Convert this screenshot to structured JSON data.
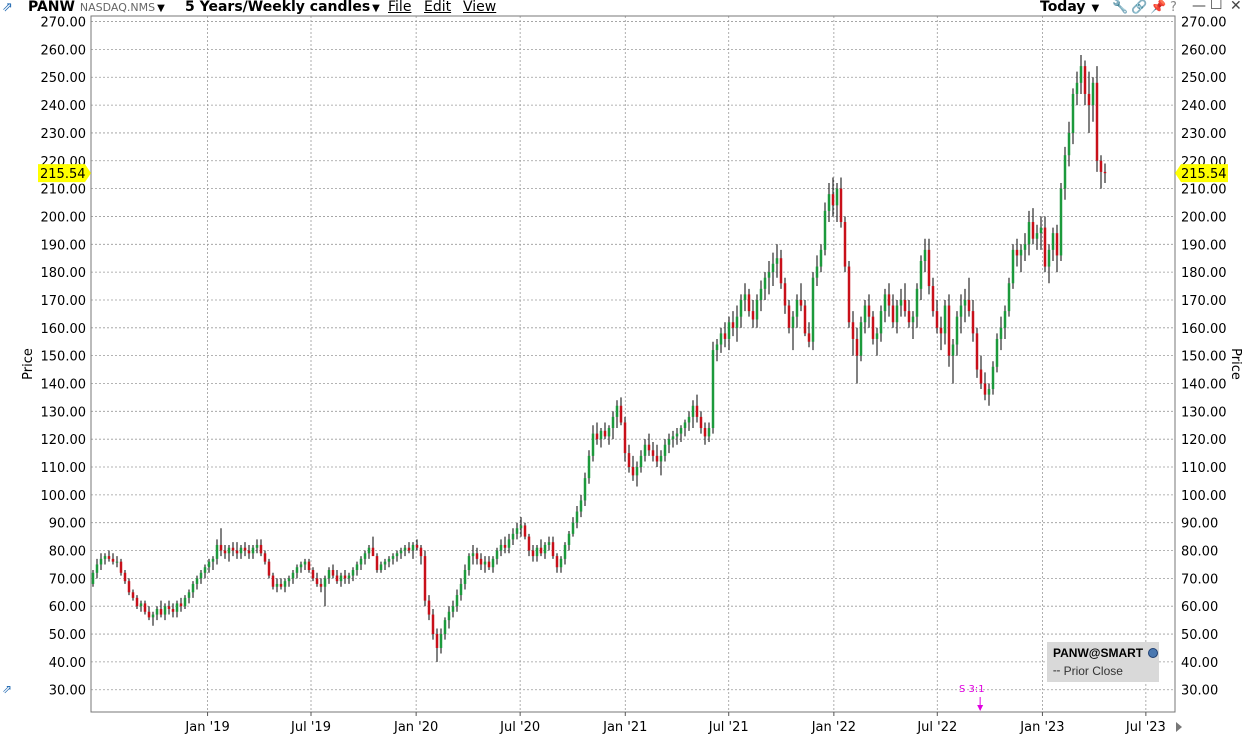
{
  "toolbar": {
    "symbol": "PANW",
    "exchange": "NASDAQ.NMS",
    "period": "5 Years/Weekly candles",
    "menu_file": "File",
    "menu_edit": "Edit",
    "menu_view": "View",
    "range_selector": "Today"
  },
  "icons": {
    "app": "chart-app-icon",
    "wrench": "wrench-icon",
    "link": "link-icon",
    "pin": "pin-icon",
    "help": "help-icon",
    "minimize": "minimize-icon",
    "maximize": "maximize-icon",
    "close": "close-icon"
  },
  "legend": {
    "title": "PANW@SMART",
    "prior_close": "Prior Close"
  },
  "event": {
    "label": "S 3:1",
    "date": "2022-09-14",
    "color": "#e000e0"
  },
  "colors": {
    "up": "#1c9a3c",
    "down": "#c8101a",
    "wick": "#000000",
    "price_tag": "#ffff00",
    "grid": "#9a9a9a"
  },
  "chart_data": {
    "type": "candlestick",
    "title": "",
    "ylabel": "Price",
    "ylim": [
      22,
      272
    ],
    "yticks": [
      30,
      40,
      50,
      60,
      70,
      80,
      90,
      100,
      110,
      120,
      130,
      140,
      150,
      160,
      170,
      180,
      190,
      200,
      210,
      220,
      230,
      240,
      250,
      260,
      270
    ],
    "ytick_labels": [
      "30.00",
      "40.00",
      "50.00",
      "60.00",
      "70.00",
      "80.00",
      "90.00",
      "100.00",
      "110.00",
      "120.00",
      "130.00",
      "140.00",
      "150.00",
      "160.00",
      "170.00",
      "180.00",
      "190.00",
      "200.00",
      "210.00",
      "220.00",
      "230.00",
      "240.00",
      "250.00",
      "260.00",
      "270.00"
    ],
    "xlim": [
      "2018-06-11",
      "2023-08-21"
    ],
    "xticks": [
      "2019-01-01",
      "2019-07-01",
      "2020-01-01",
      "2020-07-01",
      "2021-01-01",
      "2021-07-01",
      "2022-01-01",
      "2022-07-01",
      "2023-01-01",
      "2023-07-01"
    ],
    "xtick_labels": [
      "Jan '19",
      "Jul '19",
      "Jan '20",
      "Jul '20",
      "Jan '21",
      "Jul '21",
      "Jan '22",
      "Jul '22",
      "Jan '23",
      "Jul '23"
    ],
    "last_price": 215.54,
    "last_price_label": "215.54",
    "grid": true,
    "start_date": "2018-06-11",
    "interval_days": 7,
    "ohlc": [
      [
        68,
        73,
        67,
        72
      ],
      [
        72,
        77,
        70,
        75
      ],
      [
        75,
        79,
        73,
        77
      ],
      [
        77,
        79,
        75,
        78
      ],
      [
        78,
        80,
        76,
        77
      ],
      [
        77,
        79,
        75,
        76
      ],
      [
        76,
        78,
        74,
        76
      ],
      [
        76,
        77,
        71,
        72
      ],
      [
        72,
        73,
        68,
        69
      ],
      [
        69,
        70,
        64,
        65
      ],
      [
        65,
        66,
        62,
        63
      ],
      [
        63,
        64,
        59,
        60
      ],
      [
        60,
        62,
        58,
        61
      ],
      [
        61,
        62,
        57,
        58
      ],
      [
        58,
        60,
        55,
        56
      ],
      [
        56,
        58,
        53,
        57
      ],
      [
        57,
        60,
        55,
        59
      ],
      [
        59,
        62,
        56,
        57
      ],
      [
        57,
        61,
        55,
        60
      ],
      [
        60,
        62,
        57,
        59
      ],
      [
        59,
        61,
        56,
        58
      ],
      [
        58,
        62,
        56,
        61
      ],
      [
        61,
        63,
        58,
        60
      ],
      [
        60,
        64,
        59,
        63
      ],
      [
        63,
        66,
        61,
        65
      ],
      [
        65,
        69,
        63,
        68
      ],
      [
        68,
        71,
        66,
        70
      ],
      [
        70,
        73,
        68,
        72
      ],
      [
        72,
        75,
        70,
        74
      ],
      [
        74,
        77,
        72,
        76
      ],
      [
        76,
        78,
        73,
        77
      ],
      [
        77,
        84,
        75,
        82
      ],
      [
        82,
        88,
        78,
        80
      ],
      [
        80,
        82,
        77,
        79
      ],
      [
        79,
        82,
        76,
        81
      ],
      [
        81,
        83,
        78,
        80
      ],
      [
        80,
        83,
        77,
        79
      ],
      [
        79,
        82,
        77,
        81
      ],
      [
        81,
        83,
        78,
        80
      ],
      [
        80,
        82,
        77,
        79
      ],
      [
        79,
        82,
        77,
        81
      ],
      [
        81,
        84,
        79,
        82
      ],
      [
        82,
        84,
        78,
        79
      ],
      [
        79,
        80,
        75,
        76
      ],
      [
        76,
        77,
        70,
        71
      ],
      [
        71,
        72,
        66,
        67
      ],
      [
        67,
        70,
        65,
        68
      ],
      [
        68,
        70,
        66,
        67
      ],
      [
        67,
        70,
        65,
        69
      ],
      [
        69,
        71,
        67,
        70
      ],
      [
        70,
        73,
        68,
        72
      ],
      [
        72,
        75,
        70,
        74
      ],
      [
        74,
        76,
        72,
        75
      ],
      [
        75,
        77,
        73,
        76
      ],
      [
        76,
        77,
        72,
        73
      ],
      [
        73,
        74,
        69,
        70
      ],
      [
        70,
        72,
        67,
        68
      ],
      [
        68,
        70,
        65,
        67
      ],
      [
        67,
        71,
        60,
        70
      ],
      [
        70,
        74,
        68,
        73
      ],
      [
        73,
        75,
        70,
        71
      ],
      [
        71,
        73,
        68,
        69
      ],
      [
        69,
        72,
        67,
        71
      ],
      [
        71,
        73,
        68,
        70
      ],
      [
        70,
        72,
        68,
        71
      ],
      [
        71,
        74,
        69,
        73
      ],
      [
        73,
        76,
        71,
        75
      ],
      [
        75,
        78,
        73,
        77
      ],
      [
        77,
        80,
        75,
        79
      ],
      [
        79,
        82,
        77,
        81
      ],
      [
        81,
        85,
        79,
        78
      ],
      [
        78,
        79,
        72,
        73
      ],
      [
        73,
        76,
        72,
        75
      ],
      [
        75,
        77,
        73,
        76
      ],
      [
        76,
        78,
        74,
        77
      ],
      [
        77,
        79,
        75,
        78
      ],
      [
        78,
        80,
        76,
        79
      ],
      [
        79,
        81,
        77,
        80
      ],
      [
        80,
        82,
        78,
        81
      ],
      [
        81,
        83,
        79,
        80
      ],
      [
        80,
        83,
        77,
        82
      ],
      [
        82,
        84,
        80,
        81
      ],
      [
        81,
        82,
        75,
        78
      ],
      [
        78,
        80,
        60,
        62
      ],
      [
        62,
        64,
        55,
        57
      ],
      [
        57,
        59,
        48,
        50
      ],
      [
        50,
        52,
        40,
        45
      ],
      [
        45,
        52,
        43,
        50
      ],
      [
        50,
        56,
        48,
        55
      ],
      [
        55,
        60,
        52,
        58
      ],
      [
        58,
        62,
        56,
        60
      ],
      [
        60,
        66,
        58,
        64
      ],
      [
        64,
        70,
        62,
        68
      ],
      [
        68,
        75,
        66,
        73
      ],
      [
        73,
        79,
        71,
        78
      ],
      [
        78,
        82,
        75,
        79
      ],
      [
        79,
        81,
        75,
        77
      ],
      [
        77,
        79,
        73,
        75
      ],
      [
        75,
        78,
        72,
        76
      ],
      [
        76,
        78,
        73,
        74
      ],
      [
        74,
        78,
        72,
        77
      ],
      [
        77,
        81,
        75,
        80
      ],
      [
        80,
        84,
        78,
        82
      ],
      [
        82,
        85,
        79,
        81
      ],
      [
        81,
        86,
        79,
        84
      ],
      [
        84,
        88,
        82,
        86
      ],
      [
        86,
        90,
        84,
        88
      ],
      [
        88,
        92,
        85,
        89
      ],
      [
        89,
        90,
        84,
        85
      ],
      [
        85,
        86,
        78,
        80
      ],
      [
        80,
        82,
        76,
        78
      ],
      [
        78,
        82,
        76,
        81
      ],
      [
        81,
        84,
        78,
        79
      ],
      [
        79,
        83,
        77,
        82
      ],
      [
        82,
        85,
        80,
        83
      ],
      [
        83,
        85,
        77,
        78
      ],
      [
        78,
        79,
        72,
        74
      ],
      [
        74,
        78,
        72,
        77
      ],
      [
        77,
        83,
        75,
        82
      ],
      [
        82,
        87,
        80,
        86
      ],
      [
        86,
        92,
        85,
        90
      ],
      [
        90,
        96,
        88,
        94
      ],
      [
        94,
        100,
        92,
        98
      ],
      [
        98,
        108,
        96,
        106
      ],
      [
        106,
        116,
        104,
        114
      ],
      [
        114,
        125,
        112,
        122
      ],
      [
        122,
        126,
        118,
        120
      ],
      [
        120,
        124,
        117,
        123
      ],
      [
        123,
        126,
        120,
        121
      ],
      [
        121,
        125,
        118,
        124
      ],
      [
        124,
        130,
        120,
        128
      ],
      [
        128,
        134,
        124,
        132
      ],
      [
        132,
        135,
        125,
        126
      ],
      [
        126,
        128,
        112,
        115
      ],
      [
        115,
        118,
        108,
        110
      ],
      [
        110,
        114,
        105,
        107
      ],
      [
        107,
        112,
        103,
        110
      ],
      [
        110,
        116,
        108,
        114
      ],
      [
        114,
        120,
        112,
        118
      ],
      [
        118,
        122,
        114,
        116
      ],
      [
        116,
        119,
        112,
        114
      ],
      [
        114,
        118,
        110,
        112
      ],
      [
        112,
        116,
        107,
        114
      ],
      [
        114,
        120,
        112,
        118
      ],
      [
        118,
        122,
        115,
        120
      ],
      [
        120,
        123,
        117,
        121
      ],
      [
        121,
        124,
        118,
        122
      ],
      [
        122,
        125,
        119,
        124
      ],
      [
        124,
        127,
        121,
        126
      ],
      [
        126,
        130,
        123,
        128
      ],
      [
        128,
        134,
        124,
        132
      ],
      [
        132,
        136,
        126,
        128
      ],
      [
        128,
        130,
        122,
        124
      ],
      [
        124,
        126,
        118,
        121
      ],
      [
        121,
        126,
        119,
        124
      ],
      [
        124,
        155,
        122,
        152
      ],
      [
        152,
        156,
        148,
        154
      ],
      [
        154,
        160,
        151,
        158
      ],
      [
        158,
        162,
        153,
        156
      ],
      [
        156,
        164,
        152,
        162
      ],
      [
        162,
        166,
        157,
        160
      ],
      [
        160,
        168,
        155,
        164
      ],
      [
        164,
        172,
        160,
        170
      ],
      [
        170,
        176,
        166,
        172
      ],
      [
        172,
        174,
        164,
        166
      ],
      [
        166,
        170,
        160,
        163
      ],
      [
        163,
        172,
        160,
        170
      ],
      [
        170,
        177,
        166,
        174
      ],
      [
        174,
        180,
        170,
        178
      ],
      [
        178,
        184,
        172,
        180
      ],
      [
        180,
        187,
        175,
        183
      ],
      [
        183,
        190,
        178,
        185
      ],
      [
        185,
        188,
        174,
        176
      ],
      [
        176,
        178,
        165,
        168
      ],
      [
        168,
        170,
        158,
        160
      ],
      [
        160,
        166,
        152,
        164
      ],
      [
        164,
        172,
        160,
        170
      ],
      [
        170,
        176,
        166,
        168
      ],
      [
        168,
        170,
        157,
        158
      ],
      [
        158,
        162,
        153,
        155
      ],
      [
        155,
        180,
        152,
        178
      ],
      [
        178,
        186,
        175,
        182
      ],
      [
        182,
        190,
        180,
        188
      ],
      [
        188,
        205,
        186,
        202
      ],
      [
        202,
        212,
        198,
        208
      ],
      [
        208,
        214,
        200,
        204
      ],
      [
        204,
        212,
        198,
        210
      ],
      [
        210,
        214,
        196,
        198
      ],
      [
        198,
        200,
        180,
        182
      ],
      [
        182,
        184,
        160,
        162
      ],
      [
        162,
        166,
        150,
        156
      ],
      [
        156,
        160,
        140,
        150
      ],
      [
        150,
        164,
        148,
        162
      ],
      [
        162,
        170,
        158,
        168
      ],
      [
        168,
        172,
        160,
        164
      ],
      [
        164,
        166,
        154,
        156
      ],
      [
        156,
        160,
        150,
        158
      ],
      [
        158,
        168,
        155,
        166
      ],
      [
        166,
        174,
        162,
        172
      ],
      [
        172,
        176,
        164,
        168
      ],
      [
        168,
        172,
        160,
        162
      ],
      [
        162,
        170,
        158,
        168
      ],
      [
        168,
        174,
        164,
        170
      ],
      [
        170,
        176,
        164,
        166
      ],
      [
        166,
        170,
        160,
        162
      ],
      [
        162,
        166,
        156,
        164
      ],
      [
        164,
        176,
        160,
        174
      ],
      [
        174,
        186,
        170,
        184
      ],
      [
        184,
        192,
        180,
        188
      ],
      [
        188,
        192,
        172,
        175
      ],
      [
        175,
        178,
        164,
        166
      ],
      [
        166,
        170,
        158,
        160
      ],
      [
        160,
        164,
        152,
        158
      ],
      [
        158,
        170,
        154,
        168
      ],
      [
        168,
        172,
        146,
        150
      ],
      [
        150,
        156,
        140,
        154
      ],
      [
        154,
        166,
        150,
        164
      ],
      [
        164,
        172,
        158,
        168
      ],
      [
        168,
        174,
        162,
        170
      ],
      [
        170,
        178,
        164,
        166
      ],
      [
        166,
        170,
        155,
        158
      ],
      [
        158,
        160,
        142,
        145
      ],
      [
        145,
        150,
        138,
        140
      ],
      [
        140,
        144,
        134,
        136
      ],
      [
        136,
        140,
        132,
        138
      ],
      [
        138,
        148,
        136,
        146
      ],
      [
        146,
        158,
        144,
        156
      ],
      [
        156,
        164,
        152,
        160
      ],
      [
        160,
        168,
        156,
        166
      ],
      [
        166,
        178,
        164,
        176
      ],
      [
        176,
        190,
        174,
        188
      ],
      [
        188,
        192,
        182,
        186
      ],
      [
        186,
        190,
        180,
        188
      ],
      [
        188,
        194,
        184,
        190
      ],
      [
        190,
        202,
        186,
        198
      ],
      [
        198,
        203,
        190,
        192
      ],
      [
        192,
        197,
        188,
        194
      ],
      [
        194,
        200,
        188,
        196
      ],
      [
        196,
        200,
        180,
        182
      ],
      [
        182,
        190,
        176,
        188
      ],
      [
        188,
        196,
        184,
        194
      ],
      [
        194,
        197,
        180,
        186
      ],
      [
        186,
        212,
        184,
        210
      ],
      [
        210,
        225,
        206,
        222
      ],
      [
        222,
        234,
        218,
        230
      ],
      [
        230,
        246,
        226,
        244
      ],
      [
        244,
        252,
        240,
        248
      ],
      [
        248,
        258,
        244,
        254
      ],
      [
        254,
        256,
        240,
        244
      ],
      [
        244,
        252,
        230,
        240
      ],
      [
        240,
        250,
        234,
        248
      ],
      [
        248,
        254,
        216,
        220
      ],
      [
        220,
        222,
        210,
        216
      ],
      [
        216,
        219,
        212,
        215.54
      ]
    ]
  }
}
